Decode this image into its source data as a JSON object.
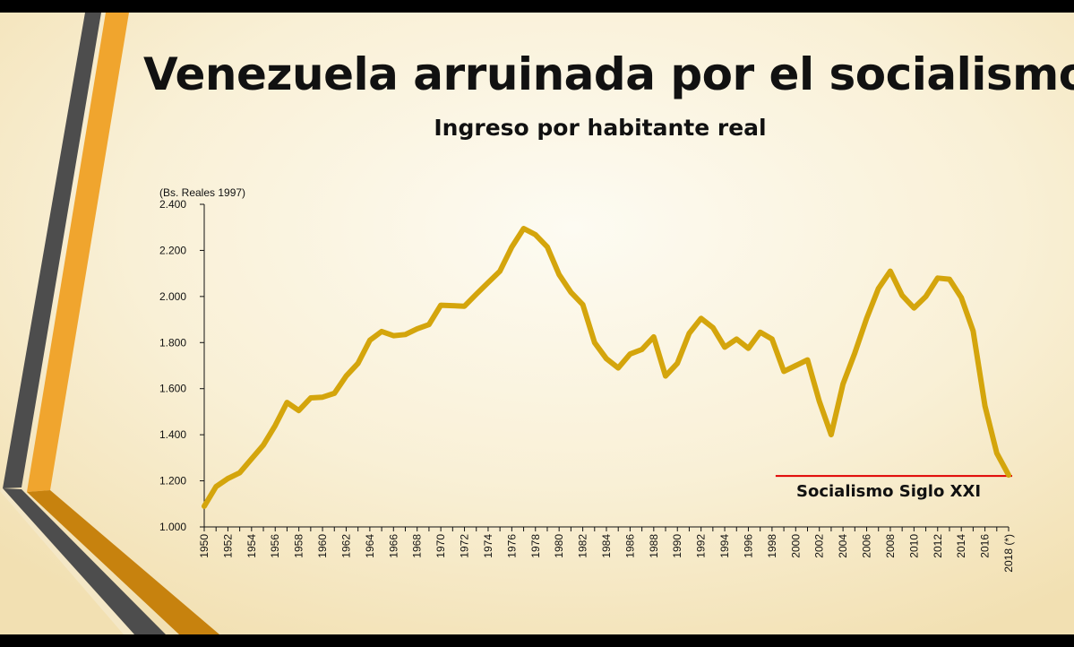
{
  "slide": {
    "title": "Venezuela arruinada por el socialismo",
    "subtitle": "Ingreso  por habitante real"
  },
  "colors": {
    "line": "#D4A50C",
    "annotation_line": "#E00000",
    "stripe_dark": "#4D4D4D",
    "stripe_orange": "#F0A52E",
    "stripe_brown": "#C7820E"
  },
  "chart_data": {
    "type": "line",
    "title": "Ingreso  por habitante real",
    "ylabel": "(Bs. Reales 1997)",
    "xlabel": "",
    "ylim": [
      1000,
      2400
    ],
    "yticks": [
      1000,
      1200,
      1400,
      1600,
      1800,
      2000,
      2200,
      2400
    ],
    "ytick_labels": [
      "1.000",
      "1.200",
      "1.400",
      "1.600",
      "1.800",
      "2.000",
      "2.200",
      "2.400"
    ],
    "x": [
      1950,
      1951,
      1952,
      1953,
      1954,
      1955,
      1956,
      1957,
      1958,
      1959,
      1960,
      1961,
      1962,
      1963,
      1964,
      1965,
      1966,
      1967,
      1968,
      1969,
      1970,
      1971,
      1972,
      1973,
      1974,
      1975,
      1976,
      1977,
      1978,
      1979,
      1980,
      1981,
      1982,
      1983,
      1984,
      1985,
      1986,
      1987,
      1988,
      1989,
      1990,
      1991,
      1992,
      1993,
      1994,
      1995,
      1996,
      1997,
      1998,
      1999,
      2000,
      2001,
      2002,
      2003,
      2004,
      2005,
      2006,
      2007,
      2008,
      2009,
      2010,
      2011,
      2012,
      2013,
      2014,
      2015,
      2016,
      2017,
      2018
    ],
    "xtick_labels": [
      "1950",
      "1952",
      "1954",
      "1956",
      "1958",
      "1960",
      "1962",
      "1964",
      "1966",
      "1968",
      "1970",
      "1972",
      "1974",
      "1976",
      "1978",
      "1980",
      "1982",
      "1984",
      "1986",
      "1988",
      "1990",
      "1992",
      "1994",
      "1996",
      "1998",
      "2000",
      "2002",
      "2004",
      "2006",
      "2008",
      "2010",
      "2012",
      "2014",
      "2016",
      "2018 (*)"
    ],
    "series": [
      {
        "values": [
          1090,
          1175,
          1210,
          1235,
          1295,
          1355,
          1440,
          1540,
          1505,
          1560,
          1563,
          1580,
          1655,
          1710,
          1810,
          1848,
          1830,
          1835,
          1860,
          1878,
          1962,
          1960,
          1958,
          2010,
          2060,
          2110,
          2215,
          2295,
          2268,
          2215,
          2095,
          2018,
          1965,
          1800,
          1730,
          1690,
          1750,
          1770,
          1825,
          1655,
          1710,
          1840,
          1905,
          1865,
          1780,
          1815,
          1775,
          1845,
          1815,
          1675,
          1700,
          1725,
          1545,
          1400,
          1620,
          1755,
          1905,
          2035,
          2110,
          2005,
          1950,
          2000,
          2080,
          2075,
          1995,
          1850,
          1525,
          1320,
          1225
        ]
      }
    ],
    "annotation": {
      "label": "Socialismo Siglo XXI",
      "y": 1225,
      "x_start": 1998,
      "x_end": 2018
    },
    "grid": false,
    "legend": "none"
  }
}
